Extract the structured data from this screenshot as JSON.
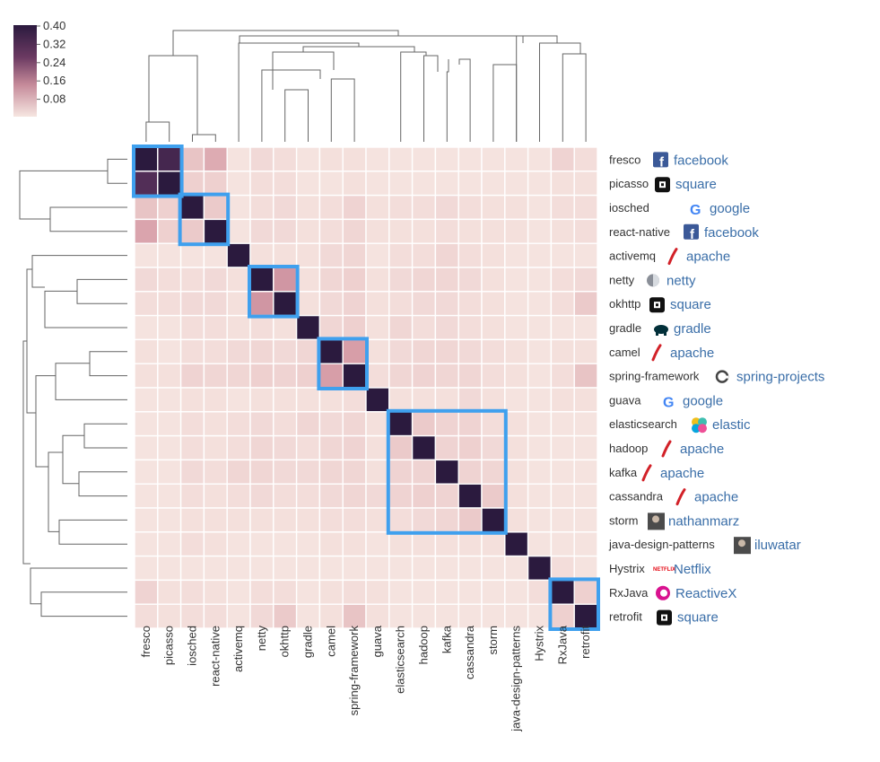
{
  "chart_data": {
    "type": "heatmap",
    "title": "",
    "repos": [
      "fresco",
      "picasso",
      "iosched",
      "react-native",
      "activemq",
      "netty",
      "okhttp",
      "gradle",
      "camel",
      "spring-framework",
      "guava",
      "elasticsearch",
      "hadoop",
      "kafka",
      "cassandra",
      "storm",
      "java-design-patterns",
      "Hystrix",
      "RxJava",
      "retrofit"
    ],
    "owners": [
      {
        "name": "facebook",
        "icon": "facebook-icon"
      },
      {
        "name": "square",
        "icon": "square-icon"
      },
      {
        "name": "google",
        "icon": "google-icon"
      },
      {
        "name": "facebook",
        "icon": "facebook-icon"
      },
      {
        "name": "apache",
        "icon": "apache-feather-icon"
      },
      {
        "name": "netty",
        "icon": "netty-icon"
      },
      {
        "name": "square",
        "icon": "square-icon"
      },
      {
        "name": "gradle",
        "icon": "gradle-elephant-icon"
      },
      {
        "name": "apache",
        "icon": "apache-feather-icon"
      },
      {
        "name": "spring-projects",
        "icon": "spring-icon"
      },
      {
        "name": "google",
        "icon": "google-icon"
      },
      {
        "name": "elastic",
        "icon": "elastic-icon"
      },
      {
        "name": "apache",
        "icon": "apache-feather-icon"
      },
      {
        "name": "apache",
        "icon": "apache-feather-icon"
      },
      {
        "name": "apache",
        "icon": "apache-feather-icon"
      },
      {
        "name": "nathanmarz",
        "icon": "avatar-icon"
      },
      {
        "name": "iluwatar",
        "icon": "avatar-icon"
      },
      {
        "name": "Netflix",
        "icon": "netflix-icon"
      },
      {
        "name": "ReactiveX",
        "icon": "reactivex-icon"
      },
      {
        "name": "square",
        "icon": "square-icon"
      }
    ],
    "values": [
      [
        0.4,
        0.36,
        0.1,
        0.14,
        0.02,
        0.05,
        0.04,
        0.02,
        0.03,
        0.03,
        0.02,
        0.02,
        0.02,
        0.02,
        0.02,
        0.02,
        0.02,
        0.02,
        0.07,
        0.04
      ],
      [
        0.34,
        0.4,
        0.08,
        0.08,
        0.02,
        0.04,
        0.04,
        0.02,
        0.02,
        0.03,
        0.02,
        0.02,
        0.02,
        0.02,
        0.02,
        0.02,
        0.02,
        0.02,
        0.03,
        0.03
      ],
      [
        0.1,
        0.08,
        0.4,
        0.09,
        0.02,
        0.04,
        0.05,
        0.03,
        0.04,
        0.07,
        0.03,
        0.04,
        0.04,
        0.05,
        0.04,
        0.03,
        0.03,
        0.02,
        0.04,
        0.04
      ],
      [
        0.15,
        0.08,
        0.09,
        0.4,
        0.02,
        0.05,
        0.05,
        0.03,
        0.04,
        0.06,
        0.03,
        0.03,
        0.03,
        0.04,
        0.03,
        0.03,
        0.03,
        0.02,
        0.03,
        0.04
      ],
      [
        0.02,
        0.02,
        0.02,
        0.02,
        0.4,
        0.03,
        0.03,
        0.03,
        0.05,
        0.06,
        0.02,
        0.04,
        0.04,
        0.06,
        0.04,
        0.03,
        0.02,
        0.02,
        0.02,
        0.02
      ],
      [
        0.05,
        0.04,
        0.04,
        0.05,
        0.03,
        0.4,
        0.17,
        0.03,
        0.06,
        0.08,
        0.03,
        0.05,
        0.06,
        0.06,
        0.05,
        0.03,
        0.02,
        0.02,
        0.04,
        0.05
      ],
      [
        0.04,
        0.04,
        0.05,
        0.05,
        0.03,
        0.17,
        0.4,
        0.03,
        0.05,
        0.07,
        0.03,
        0.04,
        0.05,
        0.05,
        0.04,
        0.03,
        0.02,
        0.02,
        0.04,
        0.09
      ],
      [
        0.02,
        0.02,
        0.04,
        0.04,
        0.03,
        0.04,
        0.03,
        0.4,
        0.06,
        0.08,
        0.03,
        0.06,
        0.04,
        0.05,
        0.04,
        0.03,
        0.02,
        0.02,
        0.02,
        0.02
      ],
      [
        0.03,
        0.02,
        0.04,
        0.04,
        0.05,
        0.06,
        0.05,
        0.06,
        0.4,
        0.16,
        0.03,
        0.05,
        0.06,
        0.06,
        0.05,
        0.04,
        0.03,
        0.02,
        0.03,
        0.03
      ],
      [
        0.03,
        0.03,
        0.07,
        0.06,
        0.06,
        0.08,
        0.07,
        0.08,
        0.16,
        0.4,
        0.04,
        0.06,
        0.07,
        0.06,
        0.06,
        0.04,
        0.03,
        0.02,
        0.04,
        0.1
      ],
      [
        0.02,
        0.02,
        0.03,
        0.03,
        0.02,
        0.03,
        0.03,
        0.03,
        0.03,
        0.04,
        0.4,
        0.03,
        0.03,
        0.03,
        0.05,
        0.03,
        0.02,
        0.02,
        0.03,
        0.03
      ],
      [
        0.02,
        0.02,
        0.04,
        0.03,
        0.04,
        0.05,
        0.04,
        0.06,
        0.05,
        0.06,
        0.03,
        0.4,
        0.09,
        0.07,
        0.07,
        0.04,
        0.03,
        0.02,
        0.02,
        0.02
      ],
      [
        0.02,
        0.02,
        0.04,
        0.03,
        0.04,
        0.06,
        0.05,
        0.04,
        0.06,
        0.07,
        0.03,
        0.09,
        0.4,
        0.07,
        0.08,
        0.05,
        0.03,
        0.02,
        0.02,
        0.02
      ],
      [
        0.02,
        0.02,
        0.05,
        0.04,
        0.06,
        0.06,
        0.05,
        0.05,
        0.06,
        0.06,
        0.03,
        0.07,
        0.07,
        0.4,
        0.07,
        0.06,
        0.03,
        0.02,
        0.02,
        0.02
      ],
      [
        0.02,
        0.02,
        0.04,
        0.03,
        0.04,
        0.05,
        0.04,
        0.04,
        0.05,
        0.06,
        0.05,
        0.07,
        0.08,
        0.07,
        0.4,
        0.09,
        0.03,
        0.02,
        0.02,
        0.02
      ],
      [
        0.02,
        0.02,
        0.03,
        0.03,
        0.03,
        0.03,
        0.03,
        0.03,
        0.04,
        0.04,
        0.03,
        0.04,
        0.05,
        0.06,
        0.09,
        0.4,
        0.03,
        0.02,
        0.02,
        0.02
      ],
      [
        0.02,
        0.02,
        0.04,
        0.03,
        0.02,
        0.02,
        0.02,
        0.02,
        0.03,
        0.03,
        0.02,
        0.03,
        0.03,
        0.03,
        0.03,
        0.03,
        0.4,
        0.02,
        0.02,
        0.02
      ],
      [
        0.02,
        0.02,
        0.02,
        0.02,
        0.02,
        0.02,
        0.02,
        0.02,
        0.02,
        0.02,
        0.02,
        0.02,
        0.02,
        0.02,
        0.02,
        0.02,
        0.02,
        0.4,
        0.04,
        0.02
      ],
      [
        0.07,
        0.03,
        0.04,
        0.03,
        0.02,
        0.04,
        0.04,
        0.02,
        0.03,
        0.04,
        0.03,
        0.02,
        0.02,
        0.02,
        0.02,
        0.02,
        0.02,
        0.04,
        0.4,
        0.08
      ],
      [
        0.04,
        0.03,
        0.04,
        0.04,
        0.02,
        0.05,
        0.09,
        0.02,
        0.03,
        0.1,
        0.03,
        0.02,
        0.02,
        0.02,
        0.02,
        0.02,
        0.02,
        0.02,
        0.08,
        0.4
      ]
    ],
    "colorbar": {
      "range": [
        0,
        0.4
      ],
      "ticks": [
        "0.40",
        "0.32",
        "0.24",
        "0.16",
        "0.08"
      ]
    },
    "highlighted_clusters": [
      [
        "fresco",
        "picasso"
      ],
      [
        "iosched",
        "react-native"
      ],
      [
        "netty",
        "okhttp"
      ],
      [
        "camel",
        "spring-framework"
      ],
      [
        "elasticsearch",
        "hadoop",
        "kafka",
        "cassandra",
        "storm"
      ],
      [
        "RxJava",
        "retrofit"
      ]
    ],
    "dendrogram": "hierarchical clustering of repositories (rows and columns)"
  },
  "colors": {
    "low": "#f6e6e1",
    "mid": "#d99fa7",
    "high": "#2b1a3e",
    "highlight": "#3fa0ee",
    "owner_text": "#3a6ea8",
    "tree": "#666666"
  }
}
